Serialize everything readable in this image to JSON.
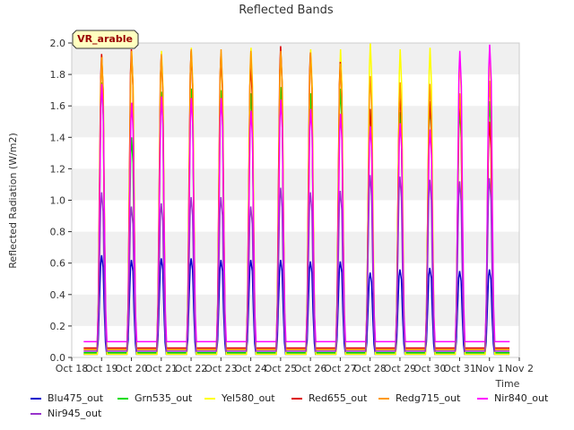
{
  "chart_data": {
    "type": "line",
    "title": "Reflected Bands",
    "ylabel": "Reflected Radiation (W/m2)",
    "xlabel": "Time",
    "badge": "VR_arable",
    "ylim": [
      0,
      2.0
    ],
    "yticks": [
      "0.0",
      "0.2",
      "0.4",
      "0.6",
      "0.8",
      "1.0",
      "1.2",
      "1.4",
      "1.6",
      "1.8",
      "2.0"
    ],
    "xticks": [
      "Oct 18",
      "Oct 19",
      "Oct 20",
      "Oct 21",
      "Oct 22",
      "Oct 23",
      "Oct 24",
      "Oct 25",
      "Oct 26",
      "Oct 27",
      "Oct 28",
      "Oct 29",
      "Oct 30",
      "Oct 31",
      "Nov 1",
      "Nov 2"
    ],
    "days": [
      "Oct 19",
      "Oct 20",
      "Oct 21",
      "Oct 22",
      "Oct 23",
      "Oct 24",
      "Oct 25",
      "Oct 26",
      "Oct 27",
      "Oct 28",
      "Oct 29",
      "Oct 30",
      "Oct 31",
      "Nov 1"
    ],
    "grid": "horizontal bands",
    "legend_position": "bottom",
    "series": [
      {
        "name": "Blu475_out",
        "color": "#0000cc",
        "base": 0.02,
        "peaks": [
          0.65,
          0.62,
          0.63,
          0.63,
          0.62,
          0.62,
          0.62,
          0.61,
          0.61,
          0.54,
          0.56,
          0.57,
          0.55,
          0.56
        ]
      },
      {
        "name": "Grn535_out",
        "color": "#00dd00",
        "base": 0.03,
        "peaks": [
          1.75,
          1.4,
          1.69,
          1.71,
          1.7,
          1.68,
          1.72,
          1.68,
          1.71,
          1.58,
          1.56,
          1.61,
          1.58,
          1.63
        ]
      },
      {
        "name": "Yel580_out",
        "color": "#ffff00",
        "base": 0.02,
        "peaks": [
          1.92,
          1.95,
          1.95,
          1.97,
          1.93,
          1.97,
          1.96,
          1.96,
          1.96,
          2.0,
          1.96,
          1.97,
          1.89,
          1.91
        ]
      },
      {
        "name": "Red655_out",
        "color": "#dd0000",
        "base": 0.06,
        "peaks": [
          1.93,
          1.96,
          1.92,
          1.95,
          1.93,
          1.87,
          1.98,
          1.94,
          1.88,
          1.58,
          1.68,
          1.63,
          1.65,
          1.5
        ]
      },
      {
        "name": "Redg715_out",
        "color": "#ff9900",
        "base": 0.05,
        "peaks": [
          1.91,
          1.95,
          1.93,
          1.96,
          1.96,
          1.95,
          1.95,
          1.94,
          1.87,
          1.79,
          1.75,
          1.74,
          1.68,
          1.76
        ]
      },
      {
        "name": "Nir840_out",
        "color": "#ff00ff",
        "base": 0.1,
        "peaks": [
          1.74,
          1.62,
          1.66,
          1.65,
          1.65,
          1.57,
          1.64,
          1.58,
          1.55,
          1.47,
          1.49,
          1.45,
          1.95,
          1.99
        ]
      },
      {
        "name": "Nir945_out",
        "color": "#9933cc",
        "base": 0.04,
        "peaks": [
          1.05,
          0.96,
          0.98,
          1.02,
          1.02,
          0.96,
          1.08,
          1.05,
          1.06,
          1.16,
          1.15,
          1.13,
          1.12,
          1.14
        ]
      }
    ]
  }
}
